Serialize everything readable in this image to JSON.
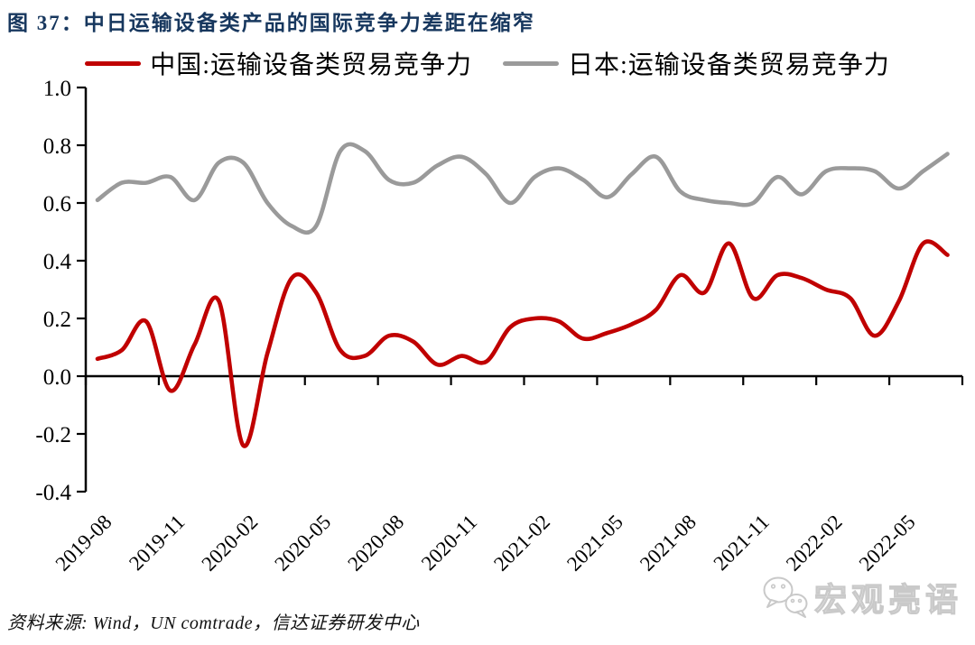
{
  "header": {
    "title": "图 37：中日运输设备类产品的国际竞争力差距在缩窄"
  },
  "legend": {
    "items": [
      {
        "label": "中国:运输设备类贸易竞争力",
        "color": "#C00000"
      },
      {
        "label": "日本:运输设备类贸易竞争力",
        "color": "#9A9A9A"
      }
    ]
  },
  "footer": {
    "source": "资料来源: Wind，UN comtrade，信达证券研发中心",
    "watermark": "宏观亮语"
  },
  "chart_data": {
    "type": "line",
    "title": "图 37：中日运输设备类产品的国际竞争力差距在缩窄",
    "x": [
      "2019-08",
      "2019-09",
      "2019-10",
      "2019-11",
      "2019-12",
      "2020-01",
      "2020-02",
      "2020-03",
      "2020-04",
      "2020-05",
      "2020-06",
      "2020-07",
      "2020-08",
      "2020-09",
      "2020-10",
      "2020-11",
      "2020-12",
      "2021-01",
      "2021-02",
      "2021-03",
      "2021-04",
      "2021-05",
      "2021-06",
      "2021-07",
      "2021-08",
      "2021-09",
      "2021-10",
      "2021-11",
      "2021-12",
      "2022-01",
      "2022-02",
      "2022-03",
      "2022-04",
      "2022-05",
      "2022-06",
      "2022-07"
    ],
    "x_tick_labels": [
      "2019-08",
      "2019-11",
      "2020-02",
      "2020-05",
      "2020-08",
      "2020-11",
      "2021-02",
      "2021-05",
      "2021-08",
      "2021-11",
      "2022-02",
      "2022-05"
    ],
    "series": [
      {
        "name": "中国:运输设备类贸易竞争力",
        "color": "#C00000",
        "values": [
          0.06,
          0.09,
          0.19,
          -0.05,
          0.11,
          0.26,
          -0.24,
          0.08,
          0.34,
          0.29,
          0.09,
          0.07,
          0.14,
          0.12,
          0.04,
          0.07,
          0.05,
          0.17,
          0.2,
          0.19,
          0.13,
          0.15,
          0.18,
          0.23,
          0.35,
          0.29,
          0.46,
          0.27,
          0.35,
          0.34,
          0.3,
          0.27,
          0.14,
          0.26,
          0.46,
          0.42
        ]
      },
      {
        "name": "日本:运输设备类贸易竞争力",
        "color": "#9A9A9A",
        "values": [
          0.61,
          0.67,
          0.67,
          0.69,
          0.61,
          0.74,
          0.74,
          0.6,
          0.52,
          0.52,
          0.78,
          0.78,
          0.68,
          0.67,
          0.73,
          0.76,
          0.7,
          0.6,
          0.69,
          0.72,
          0.68,
          0.62,
          0.7,
          0.76,
          0.64,
          0.61,
          0.6,
          0.6,
          0.69,
          0.63,
          0.71,
          0.72,
          0.71,
          0.65,
          0.71,
          0.77
        ]
      }
    ],
    "ylim": [
      -0.4,
      1.0
    ],
    "yticks": [
      1.0,
      0.8,
      0.6,
      0.4,
      0.2,
      0.0,
      -0.2,
      -0.4
    ],
    "grid": false,
    "smooth": true,
    "legend_position": "top",
    "x_axis_position": "zero"
  }
}
